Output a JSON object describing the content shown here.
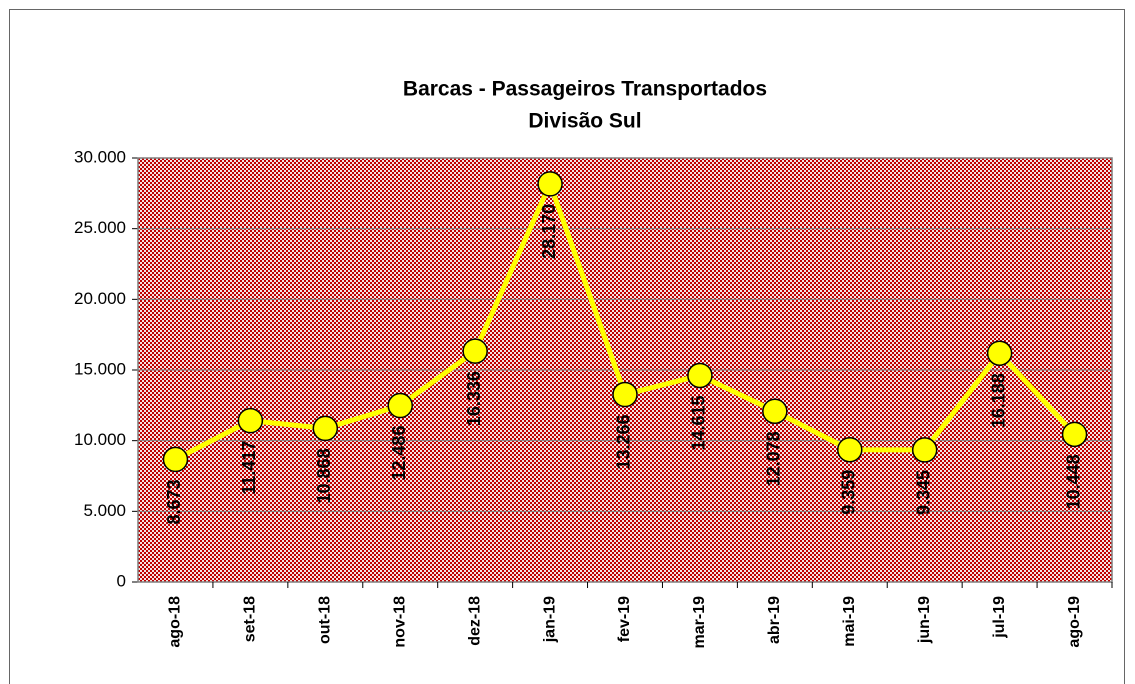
{
  "chart_data": {
    "type": "line",
    "title": "Barcas - Passageiros Transportados",
    "subtitle": "Divisão Sul",
    "categories": [
      "ago-18",
      "set-18",
      "out-18",
      "nov-18",
      "dez-18",
      "jan-19",
      "fev-19",
      "mar-19",
      "abr-19",
      "mai-19",
      "jun-19",
      "jul-19",
      "ago-19"
    ],
    "series": [
      {
        "color": "#ffff00",
        "values": [
          8673,
          11417,
          10868,
          12486,
          16336,
          28170,
          13266,
          14615,
          12078,
          9359,
          9345,
          16188,
          10448
        ],
        "value_labels": [
          "8.673",
          "11.417",
          "10.868",
          "12.486",
          "16.336",
          "28.170",
          "13.266",
          "14.615",
          "12.078",
          "9.359",
          "9.345",
          "16.188",
          "10.448"
        ]
      }
    ],
    "ylim": [
      0,
      30000
    ],
    "yticks": [
      0,
      {
        "value": 5000,
        "label": "5.000"
      },
      {
        "value": 10000,
        "label": "10.000"
      },
      {
        "value": 15000,
        "label": "15.000"
      },
      {
        "value": 20000,
        "label": "20.000"
      },
      {
        "value": 25000,
        "label": "25.000"
      },
      {
        "value": 30000,
        "label": "30.000"
      }
    ],
    "grid": true
  }
}
